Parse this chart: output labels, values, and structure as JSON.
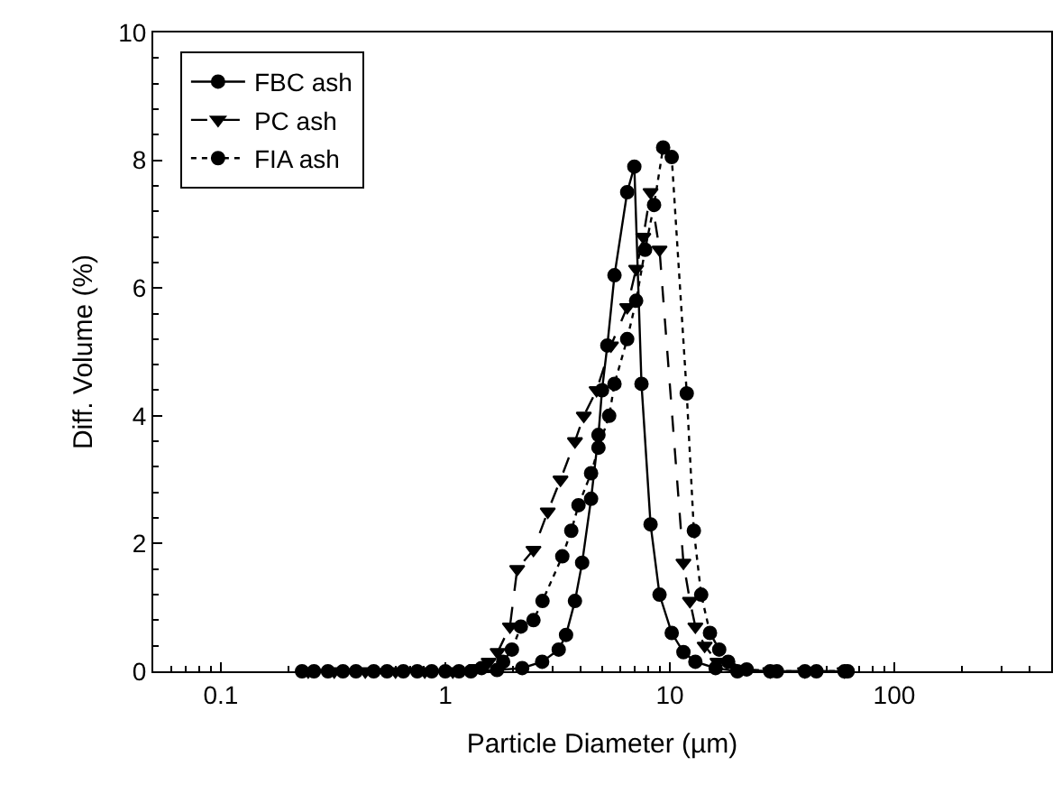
{
  "chart_data": {
    "type": "line",
    "xlabel": "Particle Diameter (µm)",
    "ylabel": "Diff. Volume (%)",
    "log": "x",
    "xlim": [
      0.05,
      500
    ],
    "xticks": [
      0.1,
      1,
      10,
      100
    ],
    "ylim": [
      0,
      10
    ],
    "yticks": [
      0,
      2,
      4,
      6,
      8,
      10
    ],
    "legend": "top left",
    "series": [
      {
        "name": "FBC ash",
        "color": "#000000",
        "marker": "circle",
        "line_style": "solid",
        "x": [
          0.23,
          0.3,
          0.4,
          0.55,
          0.75,
          1.0,
          1.3,
          1.7,
          2.2,
          2.7,
          3.2,
          3.45,
          3.78,
          4.07,
          4.46,
          4.81,
          4.99,
          5.27,
          5.67,
          6.46,
          6.95,
          7.48,
          8.21,
          9.0,
          10.2,
          11.5,
          13.0,
          16,
          20,
          28,
          40,
          60
        ],
        "values": [
          0,
          0,
          0,
          0,
          0,
          0,
          0,
          0.02,
          0.05,
          0.15,
          0.34,
          0.57,
          1.1,
          1.7,
          2.7,
          3.7,
          4.4,
          5.1,
          6.2,
          7.5,
          7.9,
          4.5,
          2.3,
          1.2,
          0.6,
          0.3,
          0.15,
          0.05,
          0,
          0,
          0,
          0
        ]
      },
      {
        "name": "PC ash",
        "color": "#000000",
        "marker": "triangle",
        "line_style": "dashed",
        "x": [
          0.245,
          0.32,
          0.44,
          0.6,
          0.81,
          1.08,
          1.37,
          1.56,
          1.71,
          1.94,
          2.09,
          2.47,
          2.86,
          3.26,
          3.78,
          4.14,
          4.72,
          5.47,
          6.46,
          7.08,
          7.62,
          8.21,
          9.0,
          11.5,
          12.3,
          13.0,
          14.3,
          16.3,
          20,
          28,
          40,
          60
        ],
        "values": [
          0,
          0,
          0,
          0,
          0,
          0,
          0.05,
          0.15,
          0.3,
          0.7,
          1.6,
          1.9,
          2.5,
          3.0,
          3.6,
          4.0,
          4.4,
          5.1,
          5.7,
          6.3,
          6.8,
          7.5,
          6.6,
          1.7,
          1.1,
          0.7,
          0.4,
          0.15,
          0.02,
          0,
          0,
          0
        ]
      },
      {
        "name": "FIA ash",
        "color": "#000000",
        "marker": "circle",
        "line_style": "dotted",
        "x": [
          0.26,
          0.35,
          0.48,
          0.65,
          0.87,
          1.15,
          1.45,
          1.81,
          1.98,
          2.17,
          2.47,
          2.71,
          3.32,
          3.64,
          3.92,
          4.46,
          4.81,
          5.37,
          5.67,
          6.46,
          7.08,
          7.76,
          8.51,
          9.34,
          10.2,
          11.9,
          12.8,
          13.8,
          15.1,
          16.6,
          18.2,
          22,
          30,
          45,
          62
        ],
        "values": [
          0,
          0,
          0,
          0,
          0,
          0,
          0.05,
          0.15,
          0.34,
          0.7,
          0.8,
          1.1,
          1.8,
          2.2,
          2.6,
          3.1,
          3.5,
          4.0,
          4.5,
          5.2,
          5.8,
          6.6,
          7.3,
          8.2,
          8.05,
          4.35,
          2.2,
          1.2,
          0.6,
          0.34,
          0.15,
          0.03,
          0,
          0,
          0
        ]
      }
    ]
  }
}
